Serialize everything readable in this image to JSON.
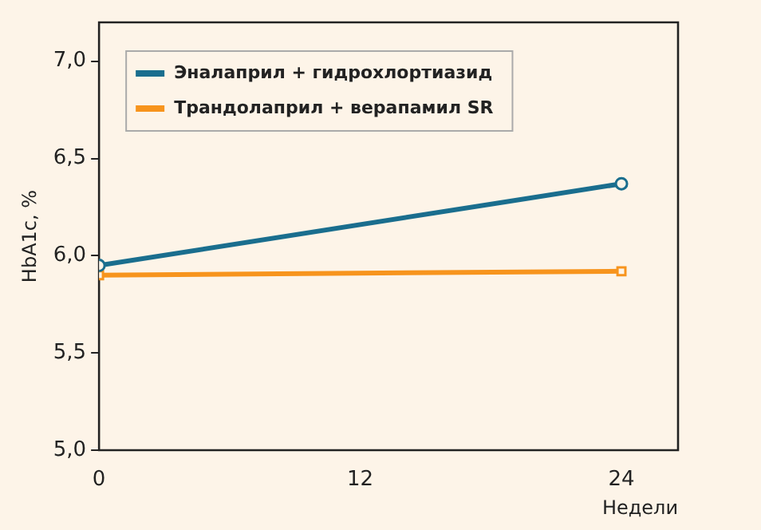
{
  "chart_data": {
    "type": "line",
    "xlabel": "Недели",
    "ylabel": "HbA1c, %",
    "x": [
      0,
      24
    ],
    "xlim": [
      0,
      26.6
    ],
    "xticks": [
      0,
      12,
      24
    ],
    "ylim": [
      5.0,
      7.2
    ],
    "yticks": [
      {
        "value": 5.0,
        "label": "5,0"
      },
      {
        "value": 5.5,
        "label": "5,5"
      },
      {
        "value": 6.0,
        "label": "6,0"
      },
      {
        "value": 6.5,
        "label": "6,5"
      },
      {
        "value": 7.0,
        "label": "7,0"
      }
    ],
    "grid": false,
    "legend": "top left",
    "line_style": "solid",
    "series": [
      {
        "name": "Эналаприл + гидрохлортиазид",
        "color": "#1a6e8e",
        "marker": "circle",
        "values": [
          5.95,
          6.37
        ]
      },
      {
        "name": "Трандолаприл + верапамил SR",
        "color": "#f7941d",
        "marker": "square",
        "values": [
          5.9,
          5.92
        ]
      }
    ]
  }
}
